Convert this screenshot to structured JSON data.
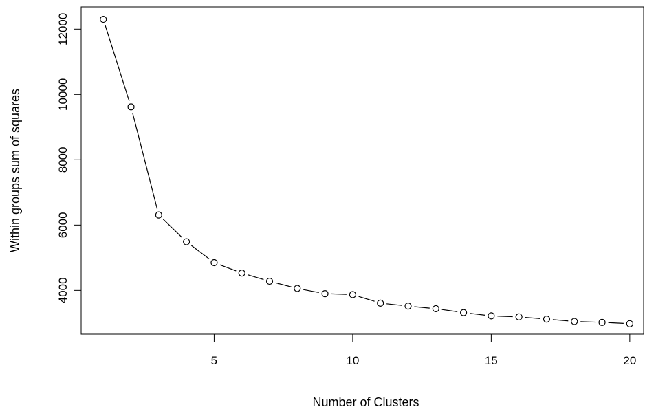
{
  "chart_data": {
    "type": "line",
    "title": "",
    "xlabel": "Number of Clusters",
    "ylabel": "Within groups sum of squares",
    "x": [
      1,
      2,
      3,
      4,
      5,
      6,
      7,
      8,
      9,
      10,
      11,
      12,
      13,
      14,
      15,
      16,
      17,
      18,
      19,
      20
    ],
    "series": [
      {
        "values": [
          12300,
          9620,
          6310,
          5490,
          4850,
          4530,
          4280,
          4060,
          3900,
          3870,
          3610,
          3520,
          3440,
          3320,
          3220,
          3190,
          3120,
          3050,
          3020,
          2980
        ]
      }
    ],
    "xlim": [
      0.2,
      20.5
    ],
    "ylim": [
      2660,
      12680
    ],
    "x_ticks": [
      5,
      10,
      15,
      20
    ],
    "x_tick_labels": [
      "5",
      "10",
      "15",
      "20"
    ],
    "y_ticks": [
      4000,
      6000,
      8000,
      10000,
      12000
    ],
    "y_tick_labels": [
      "4000",
      "6000",
      "8000",
      "10000",
      "12000"
    ],
    "grid": false,
    "line_color": "#000000",
    "marker": "open-circle"
  }
}
